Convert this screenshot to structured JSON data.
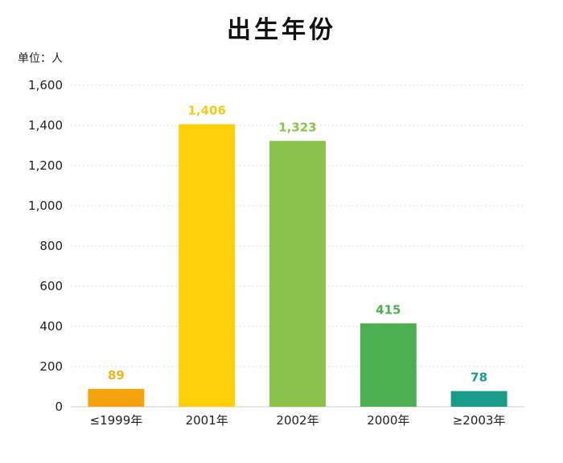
{
  "chart_data": {
    "type": "bar",
    "title": "出生年份",
    "unit_label": "单位：人",
    "categories": [
      "≤1999年",
      "2001年",
      "2002年",
      "2000年",
      "≥2003年"
    ],
    "values": [
      89,
      1406,
      1323,
      415,
      78
    ],
    "value_labels": [
      "89",
      "1,406",
      "1,323",
      "415",
      "78"
    ],
    "colors": [
      "#f5a20c",
      "#fdcf09",
      "#8bc34a",
      "#4caf50",
      "#1a9c8c"
    ],
    "label_colors": [
      "#f0b51c",
      "#f2cc1a",
      "#8bc34a",
      "#4caf50",
      "#1a9c8c"
    ],
    "y_ticks": [
      "0",
      "200",
      "400",
      "600",
      "800",
      "1,000",
      "1,200",
      "1,400",
      "1,600"
    ],
    "ylim": [
      0,
      1600
    ],
    "grid": true
  }
}
